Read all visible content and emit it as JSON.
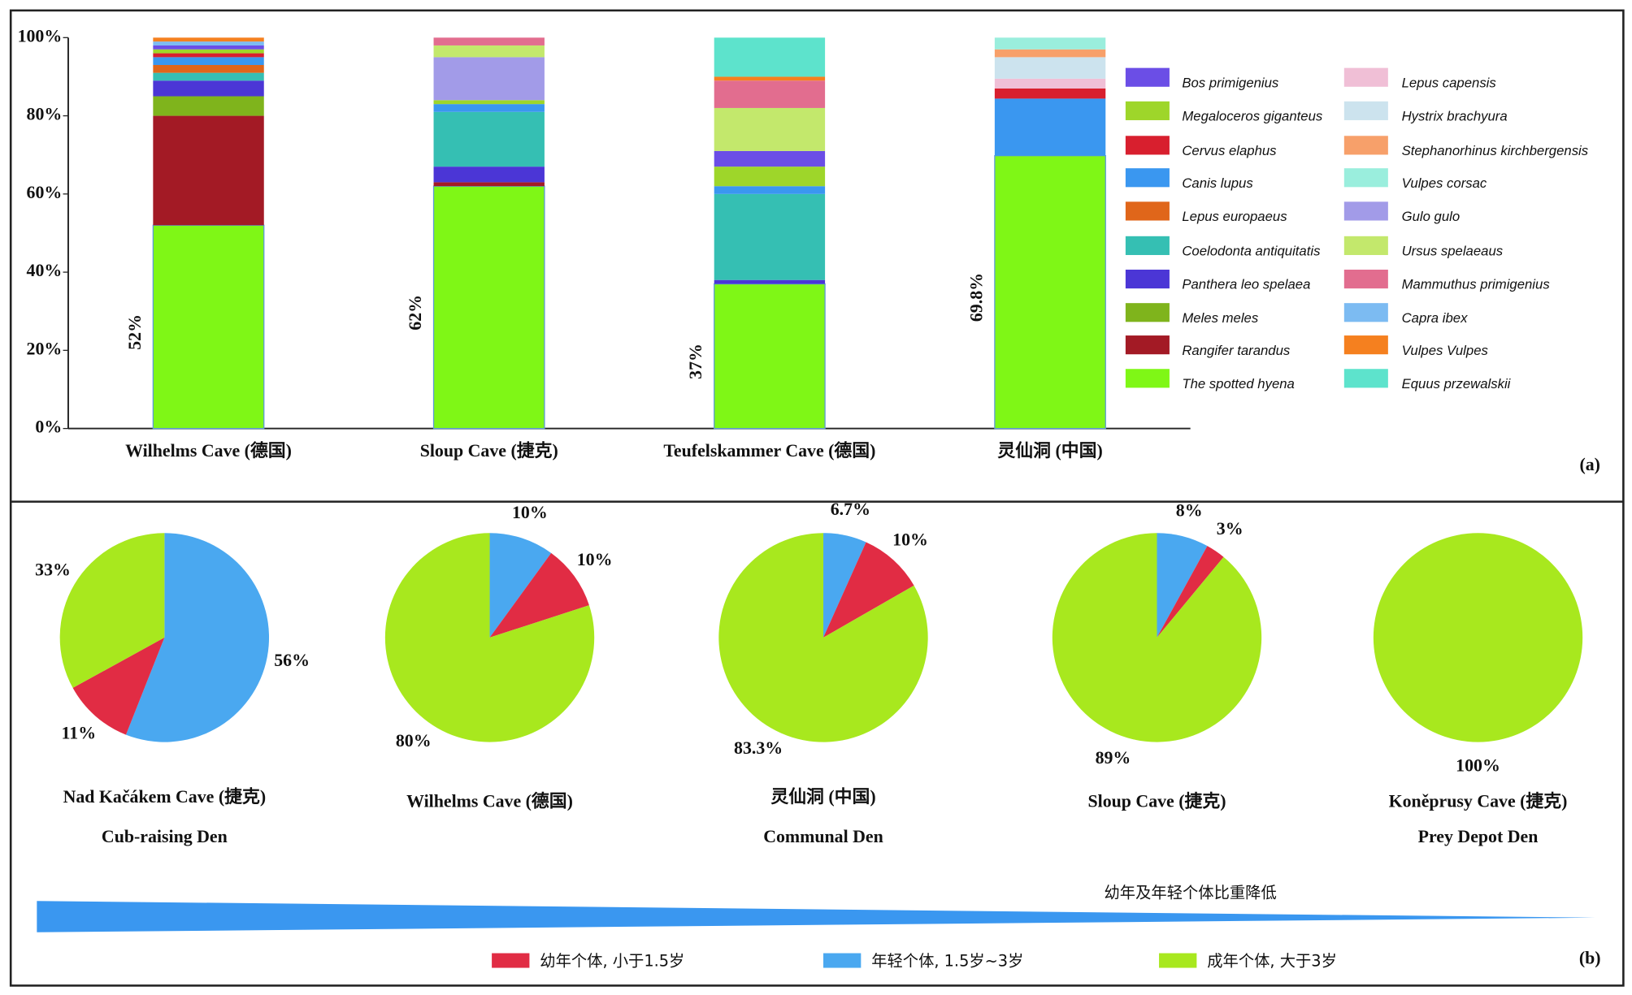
{
  "chart_data": [
    {
      "type": "bar",
      "stacked": true,
      "panel_label": "(a)",
      "categories": [
        "Wilhelms Cave (德国)",
        "Sloup Cave (捷克)",
        "Teufelskammer Cave (德国)",
        "灵仙洞 (中国)"
      ],
      "ylim": [
        0,
        100
      ],
      "yticks": [
        {
          "value": 0,
          "label": "0%"
        },
        {
          "value": 20,
          "label": "20%"
        },
        {
          "value": 40,
          "label": "40%"
        },
        {
          "value": 60,
          "label": "60%"
        },
        {
          "value": 80,
          "label": "80%"
        },
        {
          "value": 100,
          "label": "100%"
        }
      ],
      "series": [
        {
          "name": "The spotted hyena",
          "color": "#7ff716",
          "values": [
            52,
            62,
            37,
            69.8
          ],
          "value_labels": [
            "52%",
            "62%",
            "37%",
            "69.8%"
          ]
        },
        {
          "name": "Rangifer tarandus",
          "color": "#a31a25",
          "values": [
            28,
            1,
            0,
            0
          ]
        },
        {
          "name": "Meles meles",
          "color": "#7fb41c",
          "values": [
            5,
            0,
            0,
            0
          ]
        },
        {
          "name": "Panthera leo spelaea",
          "color": "#4b36d6",
          "values": [
            4,
            4,
            1,
            0
          ]
        },
        {
          "name": "Coelodonta antiquitatis",
          "color": "#35bfb3",
          "values": [
            2,
            14,
            22,
            0
          ]
        },
        {
          "name": "Lepus europaeus",
          "color": "#e0661a",
          "values": [
            2,
            0,
            0,
            0
          ]
        },
        {
          "name": "Canis lupus",
          "color": "#3a97f0",
          "values": [
            2,
            2,
            2,
            14.6
          ]
        },
        {
          "name": "Cervus elaphus",
          "color": "#d81f2e",
          "values": [
            1,
            0,
            0,
            2.6
          ]
        },
        {
          "name": "Megaloceros giganteus",
          "color": "#9ed62a",
          "values": [
            1,
            1,
            5,
            0
          ]
        },
        {
          "name": "Bos primigenius",
          "color": "#6b4ee6",
          "values": [
            1,
            0,
            4,
            0
          ]
        },
        {
          "name": "Lepus capensis",
          "color": "#f0bfd6",
          "values": [
            0,
            0,
            0,
            2.5
          ]
        },
        {
          "name": "Hystrix brachyura",
          "color": "#cce3ee",
          "values": [
            0,
            0,
            0,
            5.5
          ]
        },
        {
          "name": "Stephanorhinus kirchbergensis",
          "color": "#f7a06a",
          "values": [
            0,
            0,
            0,
            2
          ]
        },
        {
          "name": "Vulpes corsac",
          "color": "#9aeedd",
          "values": [
            0,
            0,
            0,
            3
          ]
        },
        {
          "name": "Gulo gulo",
          "color": "#a29be8",
          "values": [
            0,
            11,
            0,
            0
          ]
        },
        {
          "name": "Ursus spelaeaus",
          "color": "#c3e86c",
          "values": [
            0,
            3,
            11,
            0
          ]
        },
        {
          "name": "Mammuthus primigenius",
          "color": "#e26d8f",
          "values": [
            0,
            2,
            7,
            0
          ]
        },
        {
          "name": "Capra ibex",
          "color": "#7cbbf2",
          "values": [
            1,
            0,
            0,
            0
          ]
        },
        {
          "name": "Vulpes Vulpes",
          "color": "#f5801f",
          "values": [
            1,
            0,
            1,
            0
          ]
        },
        {
          "name": "Equus przewalskii",
          "color": "#5de3cc",
          "values": [
            0,
            0,
            10,
            0
          ]
        }
      ]
    },
    {
      "type": "pie",
      "panel_label": "(b)",
      "categories": [
        "Nad Kačákem Cave (捷克)",
        "Wilhelms Cave (德国)",
        "灵仙洞 (中国)",
        "Sloup Cave (捷克)",
        "Koněprusy Cave (捷克)"
      ],
      "subtitles": [
        "Cub-raising Den",
        null,
        "Communal Den",
        null,
        "Prey Depot Den"
      ],
      "annotation": "幼年及年轻个体比重降低",
      "series": [
        {
          "name": "幼年个体, 小于1.5岁",
          "color": "#e12c44",
          "values": [
            11,
            10,
            10,
            3,
            null
          ],
          "value_labels": [
            "11%",
            "10%",
            "10%",
            "3%",
            null
          ]
        },
        {
          "name": "年轻个体, 1.5岁~3岁",
          "color": "#4aa8f0",
          "values": [
            56,
            10,
            6.7,
            8,
            null
          ],
          "value_labels": [
            "56%",
            "10%",
            "6.7%",
            "8%",
            null
          ]
        },
        {
          "name": "成年个体, 大于3岁",
          "color": "#a8e81e",
          "values": [
            33,
            80,
            83.3,
            89,
            100
          ],
          "value_labels": [
            "33%",
            "80%",
            "83.3%",
            "89%",
            "100%"
          ]
        }
      ]
    }
  ]
}
